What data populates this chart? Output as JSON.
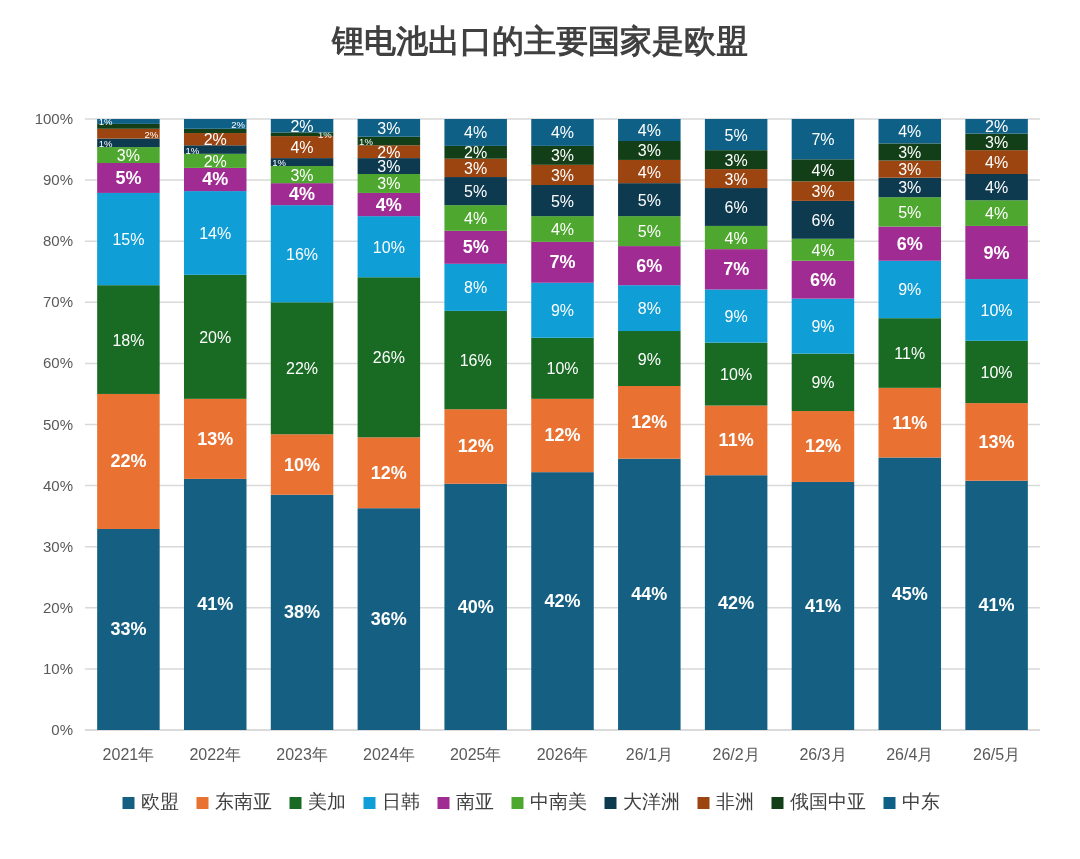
{
  "chart_data": {
    "type": "bar",
    "title": "锂电池出口的主要国家是欧盟",
    "stacked": true,
    "categories": [
      "2021年",
      "2022年",
      "2023年",
      "2024年",
      "2025年",
      "2026年",
      "26/1月",
      "26/2月",
      "26/3月",
      "26/4月",
      "26/5月"
    ],
    "ylim": [
      0,
      100
    ],
    "yticks": [
      {
        "value": 0,
        "label": "0%"
      },
      {
        "value": 10,
        "label": "10%"
      },
      {
        "value": 20,
        "label": "20%"
      },
      {
        "value": 30,
        "label": "30%"
      },
      {
        "value": 40,
        "label": "40%"
      },
      {
        "value": 50,
        "label": "50%"
      },
      {
        "value": 60,
        "label": "60%"
      },
      {
        "value": 70,
        "label": "70%"
      },
      {
        "value": 80,
        "label": "80%"
      },
      {
        "value": 90,
        "label": "90%"
      },
      {
        "value": 100,
        "label": "100%"
      }
    ],
    "grid": "y",
    "legend": "bottom",
    "series": [
      {
        "name": "欧盟",
        "color": "#156082",
        "values": [
          32.9,
          41.1,
          38.5,
          36.3,
          40.3,
          42.2,
          44.4,
          41.7,
          40.6,
          44.6,
          40.8
        ],
        "value_labels": [
          "33%",
          "41%",
          "38%",
          "36%",
          "40%",
          "42%",
          "44%",
          "42%",
          "41%",
          "45%",
          "41%"
        ]
      },
      {
        "name": "东南亚",
        "color": "#e97132",
        "values": [
          22.1,
          13.1,
          9.9,
          11.6,
          12.2,
          12.0,
          11.9,
          11.4,
          11.6,
          11.4,
          12.7
        ],
        "value_labels": [
          "22%",
          "13%",
          "10%",
          "12%",
          "12%",
          "12%",
          "12%",
          "11%",
          "12%",
          "11%",
          "13%"
        ]
      },
      {
        "name": "美加",
        "color": "#196b24",
        "values": [
          17.8,
          20.3,
          21.6,
          26.2,
          16.1,
          10.0,
          9.0,
          10.3,
          9.4,
          11.4,
          10.2
        ],
        "value_labels": [
          "18%",
          "20%",
          "22%",
          "26%",
          "16%",
          "10%",
          "9%",
          "10%",
          "9%",
          "11%",
          "10%"
        ]
      },
      {
        "name": "日韩",
        "color": "#0f9ed5",
        "values": [
          15.1,
          13.7,
          15.9,
          10.0,
          7.7,
          9.0,
          7.5,
          8.7,
          9.0,
          9.4,
          10.1
        ],
        "value_labels": [
          "15%",
          "14%",
          "16%",
          "10%",
          "8%",
          "9%",
          "8%",
          "9%",
          "9%",
          "9%",
          "10%"
        ]
      },
      {
        "name": "南亚",
        "color": "#a02b93",
        "values": [
          4.9,
          3.8,
          3.6,
          3.8,
          5.4,
          6.7,
          6.4,
          6.6,
          6.2,
          5.6,
          8.7
        ],
        "value_labels": [
          "5%",
          "4%",
          "4%",
          "4%",
          "5%",
          "7%",
          "6%",
          "7%",
          "6%",
          "6%",
          "9%"
        ]
      },
      {
        "name": "中南美",
        "color": "#4ea72e",
        "values": [
          2.6,
          2.3,
          2.8,
          3.1,
          4.2,
          4.2,
          4.9,
          3.8,
          3.6,
          4.8,
          4.2
        ],
        "value_labels": [
          "3%",
          "2%",
          "3%",
          "3%",
          "4%",
          "4%",
          "5%",
          "4%",
          "4%",
          "5%",
          "4%"
        ]
      },
      {
        "name": "大洋洲",
        "color": "#0e3a50",
        "values": [
          1.4,
          1.4,
          1.3,
          2.6,
          4.6,
          5.1,
          5.4,
          6.2,
          6.2,
          3.2,
          4.3
        ],
        "value_labels": [
          "1%",
          "1%",
          "1%",
          "3%",
          "5%",
          "5%",
          "5%",
          "6%",
          "6%",
          "3%",
          "4%"
        ]
      },
      {
        "name": "非洲",
        "color": "#9c4511",
        "values": [
          1.6,
          2.0,
          3.6,
          2.1,
          3.0,
          3.3,
          3.8,
          3.1,
          3.2,
          2.8,
          3.9
        ],
        "value_labels": [
          "2%",
          "2%",
          "4%",
          "2%",
          "3%",
          "3%",
          "4%",
          "3%",
          "3%",
          "3%",
          "4%"
        ]
      },
      {
        "name": "俄国中亚",
        "color": "#123f17",
        "values": [
          0.8,
          0.7,
          0.6,
          1.4,
          2.1,
          3.1,
          3.1,
          3.1,
          3.6,
          2.8,
          2.7
        ],
        "value_labels": [
          null,
          null,
          "1%",
          "1%",
          "2%",
          "3%",
          "3%",
          "3%",
          "4%",
          "3%",
          "3%"
        ]
      },
      {
        "name": "中东",
        "color": "#0f6086",
        "values": [
          0.8,
          1.6,
          2.2,
          2.9,
          4.4,
          4.4,
          3.6,
          5.1,
          6.6,
          4.0,
          2.4
        ],
        "value_labels": [
          "1%",
          "2%",
          "2%",
          "3%",
          "4%",
          "4%",
          "4%",
          "5%",
          "7%",
          "4%",
          "2%"
        ]
      }
    ]
  }
}
